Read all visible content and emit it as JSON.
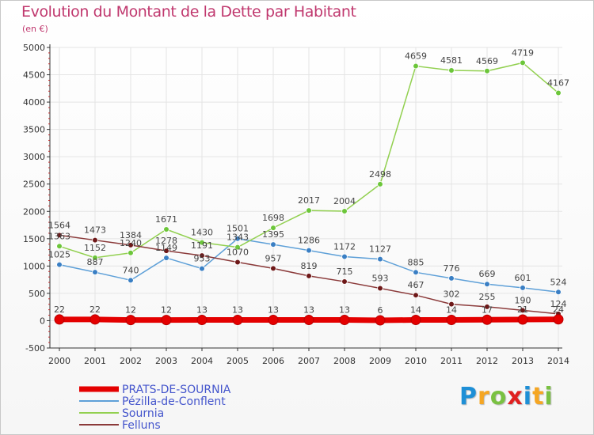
{
  "chart_data": {
    "type": "line",
    "title": "Evolution du Montant de la Dette par Habitant",
    "ylabel": "(en €)",
    "xlabel": "",
    "ylim": [
      -500,
      5000
    ],
    "yticks": [
      -500,
      0,
      500,
      1000,
      1500,
      2000,
      2500,
      3000,
      3500,
      4000,
      4500,
      5000
    ],
    "categories": [
      "2000",
      "2001",
      "2002",
      "2003",
      "2004",
      "2005",
      "2006",
      "2007",
      "2008",
      "2009",
      "2010",
      "2011",
      "2012",
      "2013",
      "2014"
    ],
    "series": [
      {
        "name": "PRATS-DE-SOURNIA",
        "color": "#e40000",
        "marker_color": "#e40000",
        "values": [
          22,
          22,
          12,
          12,
          13,
          13,
          13,
          13,
          13,
          6,
          14,
          14,
          17,
          21,
          24
        ],
        "labels": [
          "22",
          "22",
          "12",
          "12",
          "13",
          "13",
          "13",
          "13",
          "13",
          "6",
          "14",
          "14",
          "17",
          "21",
          "24"
        ]
      },
      {
        "name": "Pézilla-de-Conflent",
        "color": "#5ea0d8",
        "marker_color": "#3a7fc4",
        "values": [
          1025,
          887,
          740,
          1149,
          953,
          1501,
          1395,
          1286,
          1172,
          1127,
          885,
          776,
          669,
          601,
          524
        ],
        "labels": [
          "1025",
          "887",
          "740",
          "1149",
          "953",
          "1501",
          "1395",
          "1286",
          "1172",
          "1127",
          "885",
          "776",
          "669",
          "601",
          "524"
        ]
      },
      {
        "name": "Sournia",
        "color": "#92d050",
        "marker_color": "#6cc63a",
        "values": [
          1363,
          1152,
          1240,
          1671,
          1430,
          1343,
          1698,
          2017,
          2004,
          2498,
          4659,
          4581,
          4569,
          4719,
          4167
        ],
        "labels": [
          "1363",
          "1152",
          "1240",
          "1671",
          "1430",
          "1343",
          "1698",
          "2017",
          "2004",
          "2498",
          "4659",
          "4581",
          "4569",
          "4719",
          "4167"
        ]
      },
      {
        "name": "Felluns",
        "color": "#8b3a3a",
        "marker_color": "#6e1818",
        "values": [
          1564,
          1473,
          1384,
          1278,
          1191,
          1070,
          957,
          819,
          715,
          593,
          467,
          302,
          255,
          190,
          124
        ],
        "labels": [
          "1564",
          "1473",
          "1384",
          "1278",
          "1191",
          "1070",
          "957",
          "819",
          "715",
          "593",
          "467",
          "302",
          "255",
          "190",
          "124"
        ]
      }
    ],
    "legend_position": "bottom-left"
  },
  "logo": {
    "letters": [
      "P",
      "r",
      "o",
      "x",
      "i",
      "t",
      "i"
    ],
    "colors": [
      "#1e8fd6",
      "#f5a623",
      "#7ac142",
      "#e02020",
      "#1e8fd6",
      "#f5a623",
      "#7ac142"
    ]
  }
}
